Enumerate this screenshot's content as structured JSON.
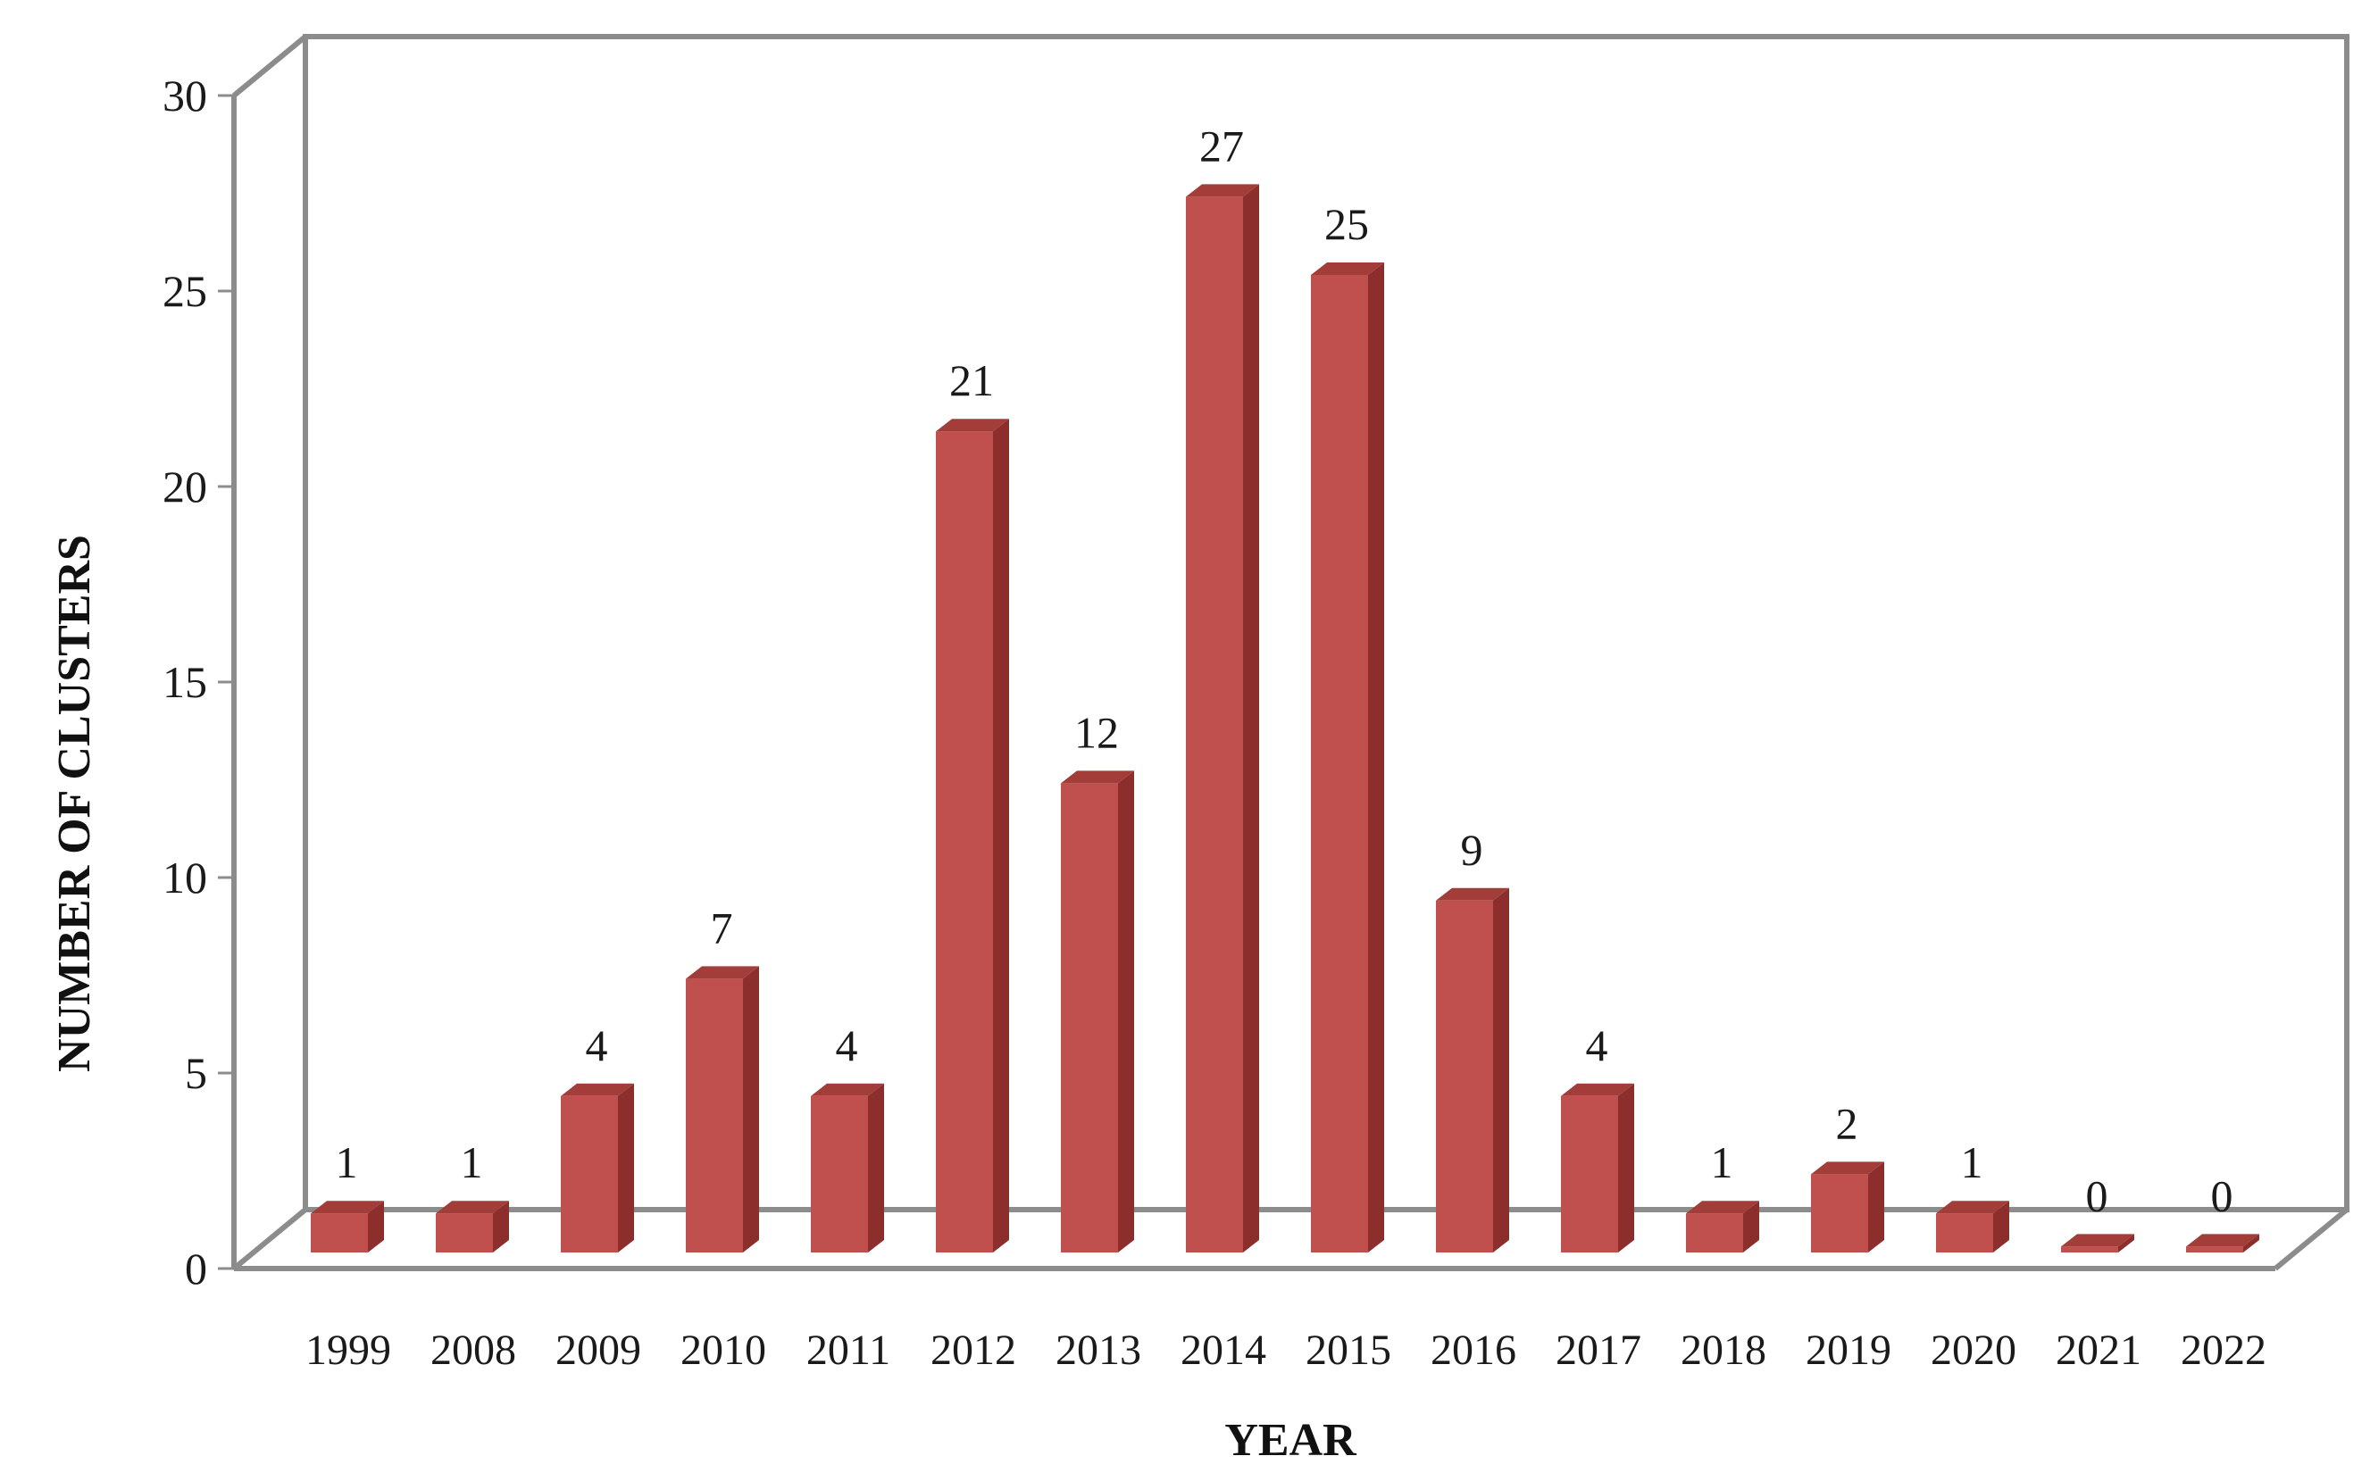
{
  "chart_data": {
    "type": "bar",
    "categories": [
      "1999",
      "2008",
      "2009",
      "2010",
      "2011",
      "2012",
      "2013",
      "2014",
      "2015",
      "2016",
      "2017",
      "2018",
      "2019",
      "2020",
      "2021",
      "2022"
    ],
    "values": [
      1,
      1,
      4,
      7,
      4,
      21,
      12,
      27,
      25,
      9,
      4,
      1,
      2,
      1,
      0,
      0
    ],
    "xlabel": "YEAR",
    "ylabel": "NUMBER OF CLUSTERS",
    "ylim": [
      0,
      30
    ],
    "yticks": [
      0,
      5,
      10,
      15,
      20,
      25,
      30
    ],
    "grid": false,
    "legend": "none",
    "three_d": true,
    "colors": {
      "bar_front": "#c0504d",
      "bar_side": "#8b2e2c",
      "bar_top": "#a33d3a",
      "frame": "#8c8c8c"
    }
  }
}
